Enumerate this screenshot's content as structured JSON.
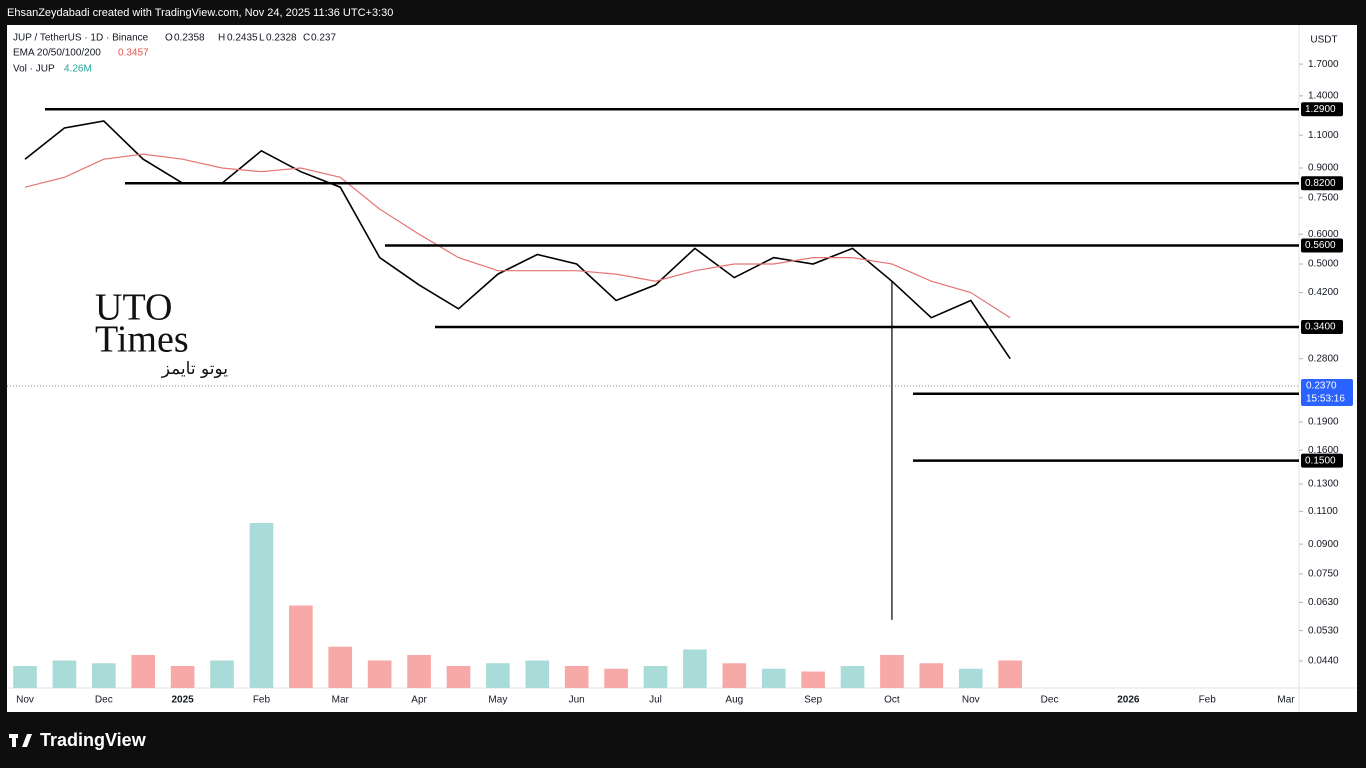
{
  "header": "EhsanZeydabadi created with TradingView.com, Nov 24, 2025 11:36 UTC+3:30",
  "legend": {
    "symbol": "JUP / TetherUS · 1D · Binance",
    "o_label": "O",
    "open": 0.2358,
    "h_label": "H",
    "high": 0.2435,
    "l_label": "L",
    "low": 0.2328,
    "c_label": "C",
    "close": 0.237,
    "ema_label": "EMA 20/50/100/200",
    "ema_value": 0.3457,
    "vol_label": "Vol · JUP",
    "vol_value": "4.26M"
  },
  "watermark": {
    "line1": "UTO",
    "line2": "Times",
    "line3": "یوتو تایمز"
  },
  "footer": "TradingView",
  "chart_data": {
    "type": "line",
    "log_scale": true,
    "grid": false,
    "axis_unit": "USDT",
    "categories": [
      "Nov",
      null,
      "Dec",
      null,
      "2025",
      null,
      "Feb",
      null,
      "Mar",
      null,
      "Apr",
      null,
      "May",
      null,
      "Jun",
      null,
      "Jul",
      null,
      "Aug",
      null,
      "Sep",
      null,
      "Oct",
      null,
      "Nov",
      null,
      "Dec",
      null,
      "2026",
      null,
      "Feb",
      null,
      "Mar"
    ],
    "series": [
      {
        "name": "JUP / TetherUS",
        "color": "#000000",
        "values": [
          0.95,
          1.15,
          1.2,
          0.95,
          0.82,
          0.82,
          1.0,
          0.88,
          0.8,
          0.52,
          0.44,
          0.38,
          0.47,
          0.53,
          0.5,
          0.4,
          0.44,
          0.55,
          0.46,
          0.52,
          0.5,
          0.55,
          0.45,
          0.36,
          0.4,
          0.28,
          null,
          null,
          null,
          null,
          null,
          null,
          null
        ]
      },
      {
        "name": "EMA 20/50/100/200",
        "color": "#e57373",
        "values": [
          0.8,
          0.85,
          0.95,
          0.98,
          0.95,
          0.9,
          0.88,
          0.9,
          0.85,
          0.7,
          0.6,
          0.52,
          0.48,
          0.48,
          0.48,
          0.47,
          0.45,
          0.48,
          0.5,
          0.5,
          0.52,
          0.52,
          0.5,
          0.45,
          0.42,
          0.36,
          null,
          null,
          null,
          null,
          null,
          null,
          null
        ]
      }
    ],
    "volume": {
      "name": "Vol · JUP",
      "up_color": "#a9dcd8",
      "down_color": "#f7a9a7",
      "values": [
        8,
        10,
        9,
        12,
        8,
        10,
        60,
        30,
        15,
        10,
        12,
        8,
        9,
        10,
        8,
        7,
        8,
        14,
        9,
        7,
        6,
        8,
        12,
        9,
        7,
        10,
        null,
        null,
        null,
        null,
        null,
        null,
        null
      ]
    },
    "crash_low": {
      "values": [
        null,
        null,
        null,
        null,
        null,
        null,
        null,
        null,
        null,
        null,
        null,
        null,
        null,
        null,
        null,
        null,
        null,
        null,
        null,
        null,
        null,
        null,
        0.0566,
        null,
        null,
        null,
        null,
        null,
        null,
        null,
        null,
        null,
        null
      ]
    },
    "levels": [
      {
        "value": 1.29,
        "label": "1.2900"
      },
      {
        "value": 0.82,
        "label": "0.8200"
      },
      {
        "value": 0.56,
        "label": "0.5600"
      },
      {
        "value": 0.34,
        "label": "0.3400"
      },
      0.226,
      {
        "value": 0.15,
        "label": "0.1500"
      }
    ],
    "last_price": {
      "value": 0.237,
      "label": "0.2370",
      "countdown": "15:53:16"
    },
    "ylim": [
      0.0373,
      2.16
    ],
    "yticks": [
      {
        "value": 1.7,
        "label": "1.7000"
      },
      {
        "value": 1.4,
        "label": "1.4000"
      },
      {
        "value": 1.1,
        "label": "1.1000"
      },
      {
        "value": 0.9,
        "label": "0.9000"
      },
      {
        "value": 0.75,
        "label": "0.7500"
      },
      {
        "value": 0.6,
        "label": "0.6000"
      },
      {
        "value": 0.5,
        "label": "0.5000"
      },
      {
        "value": 0.42,
        "label": "0.4200"
      },
      {
        "value": 0.28,
        "label": "0.2800"
      },
      {
        "value": 0.19,
        "label": "0.1900"
      },
      {
        "value": 0.16,
        "label": "0.1600"
      },
      {
        "value": 0.13,
        "label": "0.1300"
      },
      {
        "value": 0.11,
        "label": "0.1100"
      },
      {
        "value": 0.09,
        "label": "0.0900"
      },
      {
        "value": 0.075,
        "label": "0.0750"
      },
      {
        "value": 0.063,
        "label": "0.0630"
      },
      {
        "value": 0.053,
        "label": "0.0530"
      },
      {
        "value": 0.044,
        "label": "0.0440"
      }
    ]
  }
}
